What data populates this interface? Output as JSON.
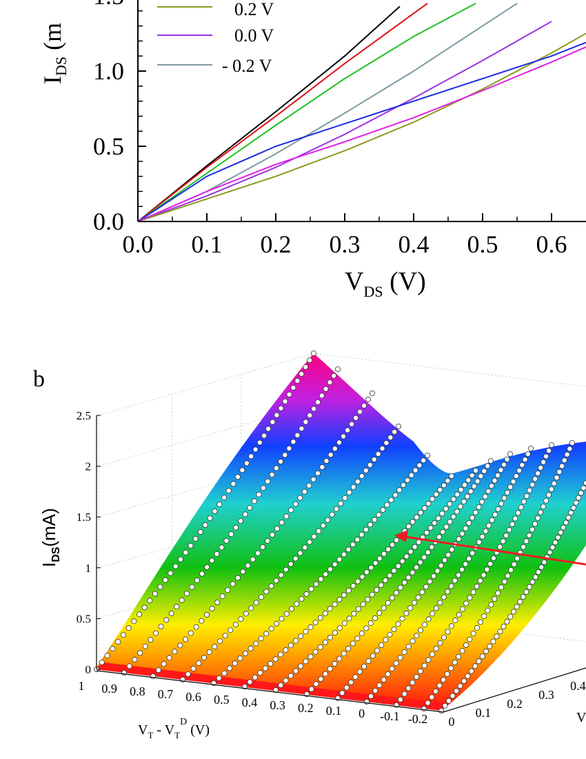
{
  "chart_data": [
    {
      "type": "line",
      "panel": "a",
      "xlabel_main": "V",
      "xlabel_sub": "DS",
      "xlabel_unit": " (V)",
      "ylabel_main": "I",
      "ylabel_sub": "DS",
      "ylabel_unit": " (m",
      "xlim": [
        0.0,
        0.65
      ],
      "ylim": [
        0.0,
        1.5
      ],
      "x_ticks": [
        "0.0",
        "0.1",
        "0.2",
        "0.3",
        "0.4",
        "0.5",
        "0.6"
      ],
      "y_ticks": [
        "0.0",
        "0.5",
        "1.0",
        "1.5"
      ],
      "legend": [
        {
          "label": "0.2 V",
          "color": "#8a9a20"
        },
        {
          "label": "0.0 V",
          "color": "#9b30e0"
        },
        {
          "label": "- 0.2 V",
          "color": "#7a9aa0"
        }
      ],
      "series": [
        {
          "color": "#000000",
          "x": [
            0,
            0.1,
            0.2,
            0.3,
            0.38
          ],
          "y": [
            0,
            0.37,
            0.73,
            1.1,
            1.43
          ]
        },
        {
          "color": "#e01010",
          "x": [
            0,
            0.1,
            0.2,
            0.3,
            0.42
          ],
          "y": [
            0,
            0.36,
            0.7,
            1.05,
            1.45
          ]
        },
        {
          "color": "#20c020",
          "x": [
            0,
            0.1,
            0.2,
            0.3,
            0.4,
            0.49
          ],
          "y": [
            0,
            0.32,
            0.64,
            0.95,
            1.23,
            1.45
          ]
        },
        {
          "color": "#7a9aa0",
          "x": [
            0,
            0.1,
            0.2,
            0.3,
            0.4,
            0.5,
            0.55
          ],
          "y": [
            0,
            0.2,
            0.45,
            0.72,
            1.0,
            1.3,
            1.45
          ]
        },
        {
          "color": "#9b30e0",
          "x": [
            0,
            0.1,
            0.2,
            0.3,
            0.4,
            0.5,
            0.6
          ],
          "y": [
            0,
            0.17,
            0.36,
            0.58,
            0.82,
            1.07,
            1.33
          ]
        },
        {
          "color": "#8a9a20",
          "x": [
            0,
            0.1,
            0.2,
            0.3,
            0.4,
            0.5,
            0.6,
            0.65
          ],
          "y": [
            0,
            0.15,
            0.3,
            0.47,
            0.66,
            0.88,
            1.12,
            1.25
          ]
        },
        {
          "color": "#1a2ae0",
          "x": [
            0,
            0.1,
            0.2,
            0.3,
            0.4,
            0.5,
            0.6,
            0.65
          ],
          "y": [
            0,
            0.3,
            0.5,
            0.65,
            0.8,
            0.95,
            1.1,
            1.19
          ]
        },
        {
          "color": "#e020e0",
          "x": [
            0,
            0.1,
            0.2,
            0.3,
            0.4,
            0.5,
            0.6,
            0.65
          ],
          "y": [
            0,
            0.2,
            0.38,
            0.53,
            0.69,
            0.87,
            1.06,
            1.16
          ]
        }
      ]
    },
    {
      "type": "surface3d",
      "panel": "b",
      "panel_label": "b",
      "zlabel_main": "I",
      "zlabel_sub": "DS",
      "zlabel_unit": "(mA)",
      "z_ticks": [
        "0",
        "0.5",
        "1",
        "1.5",
        "2",
        "2.5"
      ],
      "zlim": [
        0,
        2.5
      ],
      "x_label_main": "V",
      "x_label_sub1": "T",
      "x_label_mid": "  -  V",
      "x_label_sub2": "T",
      "x_label_sup": "D",
      "x_label_unit": "  (V)",
      "x_ticks": [
        "1",
        "0.9",
        "0.8",
        "0.7",
        "0.6",
        "0.5",
        "0.4",
        "0.3",
        "0.2",
        "0.1",
        "0",
        "-0.1",
        "-0.2"
      ],
      "xlim": [
        1.0,
        -0.2
      ],
      "y_ticks": [
        "0",
        "0.1",
        "0.2",
        "0.3",
        "0.4"
      ],
      "ylim": [
        0,
        0.6
      ],
      "y_label_partial": "V"
    }
  ]
}
